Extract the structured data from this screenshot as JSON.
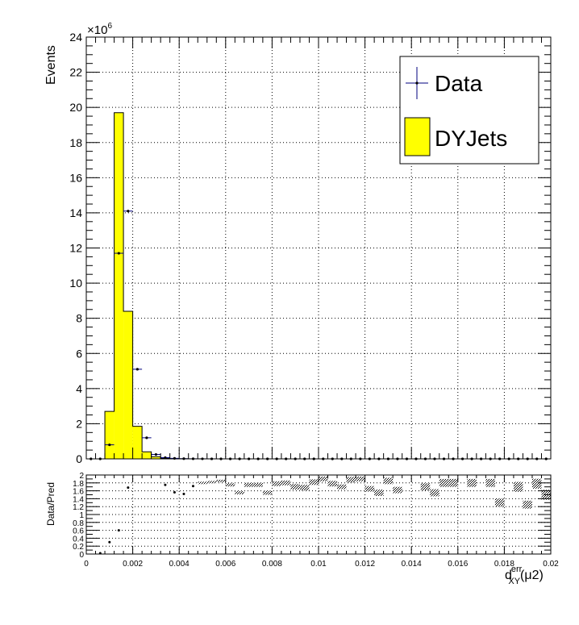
{
  "chart_data": [
    {
      "type": "bar",
      "panel": "main",
      "ylabel": "Events",
      "y_multiplier_label": "×10",
      "y_multiplier_exp": "6",
      "ylim": [
        0,
        24
      ],
      "y_unit": "1e6",
      "xlim": [
        0,
        0.02
      ],
      "grid": true,
      "legend_position": "top-right",
      "yticks": [
        "0",
        "2",
        "4",
        "6",
        "8",
        "10",
        "12",
        "14",
        "16",
        "18",
        "20",
        "22",
        "24"
      ],
      "bin_width": 0.0004,
      "bin_edges_start": 0.0,
      "mc": {
        "name": "DYJets",
        "color": "#ffff00",
        "values": [
          0.0,
          0.0,
          2.7,
          19.7,
          8.4,
          1.85,
          0.4,
          0.12,
          0.04,
          0.015,
          0.005,
          0.002,
          0.001,
          0.0,
          0.0,
          0.0,
          0.0,
          0.0,
          0.0,
          0.0,
          0.0,
          0.0,
          0.0,
          0.0,
          0.0,
          0.0,
          0.0,
          0.0,
          0.0,
          0.0,
          0.0,
          0.0,
          0.0,
          0.0,
          0.0,
          0.0,
          0.0,
          0.0,
          0.0,
          0.0,
          0.0,
          0.0,
          0.0,
          0.0,
          0.0,
          0.0,
          0.0,
          0.0,
          0.0,
          0.0
        ]
      },
      "data": {
        "name": "Data",
        "color": "#00007f",
        "values": [
          0.0,
          0.0,
          0.8,
          11.7,
          14.1,
          5.1,
          1.2,
          0.25,
          0.07,
          0.03,
          0.01,
          0.005,
          0.003,
          0.002,
          0.001,
          0.001,
          0.0,
          0.0,
          0.0,
          0.0,
          0.0,
          0.0,
          0.0,
          0.0,
          0.0,
          0.0,
          0.0,
          0.0,
          0.0,
          0.0,
          0.0,
          0.0,
          0.0,
          0.0,
          0.0,
          0.0,
          0.0,
          0.0,
          0.0,
          0.0,
          0.0,
          0.0,
          0.0,
          0.0,
          0.0,
          0.0,
          0.0,
          0.0,
          0.0,
          0.0
        ]
      }
    },
    {
      "type": "scatter",
      "panel": "ratio",
      "ylabel": "Data/Pred",
      "xlabel_main": "d",
      "xlabel_sub": "XY",
      "xlabel_sup": "err",
      "xlabel_tail": "(μ2)",
      "xlim": [
        0,
        0.02
      ],
      "ylim": [
        0,
        2
      ],
      "grid": true,
      "yticks": [
        "0",
        "0.2",
        "0.4",
        "0.6",
        "0.8",
        "1",
        "1.2",
        "1.4",
        "1.6",
        "1.8",
        "2"
      ],
      "xticks": [
        "0",
        "0.002",
        "0.004",
        "0.006",
        "0.008",
        "0.01",
        "0.012",
        "0.014",
        "0.016",
        "0.018",
        "0.02"
      ],
      "points": [
        {
          "x": 0.0006,
          "y": 0.02
        },
        {
          "x": 0.001,
          "y": 0.3
        },
        {
          "x": 0.0014,
          "y": 0.6
        },
        {
          "x": 0.0018,
          "y": 1.68
        },
        {
          "x": 0.0034,
          "y": 1.75
        },
        {
          "x": 0.0038,
          "y": 1.56
        },
        {
          "x": 0.0042,
          "y": 1.52
        },
        {
          "x": 0.0046,
          "y": 1.72
        }
      ],
      "error_bands": [
        {
          "x": 0.005,
          "y": 1.8,
          "h": 0.06
        },
        {
          "x": 0.0054,
          "y": 1.82,
          "h": 0.06
        },
        {
          "x": 0.0058,
          "y": 1.85,
          "h": 0.06
        },
        {
          "x": 0.0062,
          "y": 1.75,
          "h": 0.08
        },
        {
          "x": 0.0066,
          "y": 1.55,
          "h": 0.08
        },
        {
          "x": 0.007,
          "y": 1.75,
          "h": 0.1
        },
        {
          "x": 0.0074,
          "y": 1.75,
          "h": 0.1
        },
        {
          "x": 0.0078,
          "y": 1.55,
          "h": 0.1
        },
        {
          "x": 0.0082,
          "y": 1.78,
          "h": 0.12
        },
        {
          "x": 0.0086,
          "y": 1.8,
          "h": 0.12
        },
        {
          "x": 0.009,
          "y": 1.7,
          "h": 0.14
        },
        {
          "x": 0.0094,
          "y": 1.68,
          "h": 0.14
        },
        {
          "x": 0.0098,
          "y": 1.82,
          "h": 0.14
        },
        {
          "x": 0.0102,
          "y": 1.9,
          "h": 0.12
        },
        {
          "x": 0.0106,
          "y": 1.78,
          "h": 0.14
        },
        {
          "x": 0.011,
          "y": 1.7,
          "h": 0.12
        },
        {
          "x": 0.0114,
          "y": 1.88,
          "h": 0.14
        },
        {
          "x": 0.0118,
          "y": 1.9,
          "h": 0.12
        },
        {
          "x": 0.0122,
          "y": 1.65,
          "h": 0.14
        },
        {
          "x": 0.0126,
          "y": 1.55,
          "h": 0.16
        },
        {
          "x": 0.013,
          "y": 1.85,
          "h": 0.16
        },
        {
          "x": 0.0134,
          "y": 1.62,
          "h": 0.16
        },
        {
          "x": 0.0146,
          "y": 1.7,
          "h": 0.18
        },
        {
          "x": 0.015,
          "y": 1.55,
          "h": 0.18
        },
        {
          "x": 0.0154,
          "y": 1.8,
          "h": 0.2
        },
        {
          "x": 0.0158,
          "y": 1.8,
          "h": 0.2
        },
        {
          "x": 0.0166,
          "y": 1.8,
          "h": 0.2
        },
        {
          "x": 0.0174,
          "y": 1.8,
          "h": 0.2
        },
        {
          "x": 0.0178,
          "y": 1.3,
          "h": 0.2
        },
        {
          "x": 0.0186,
          "y": 1.7,
          "h": 0.25
        },
        {
          "x": 0.019,
          "y": 1.25,
          "h": 0.2
        },
        {
          "x": 0.0194,
          "y": 1.78,
          "h": 0.25
        },
        {
          "x": 0.0198,
          "y": 1.5,
          "h": 0.25
        }
      ]
    }
  ]
}
